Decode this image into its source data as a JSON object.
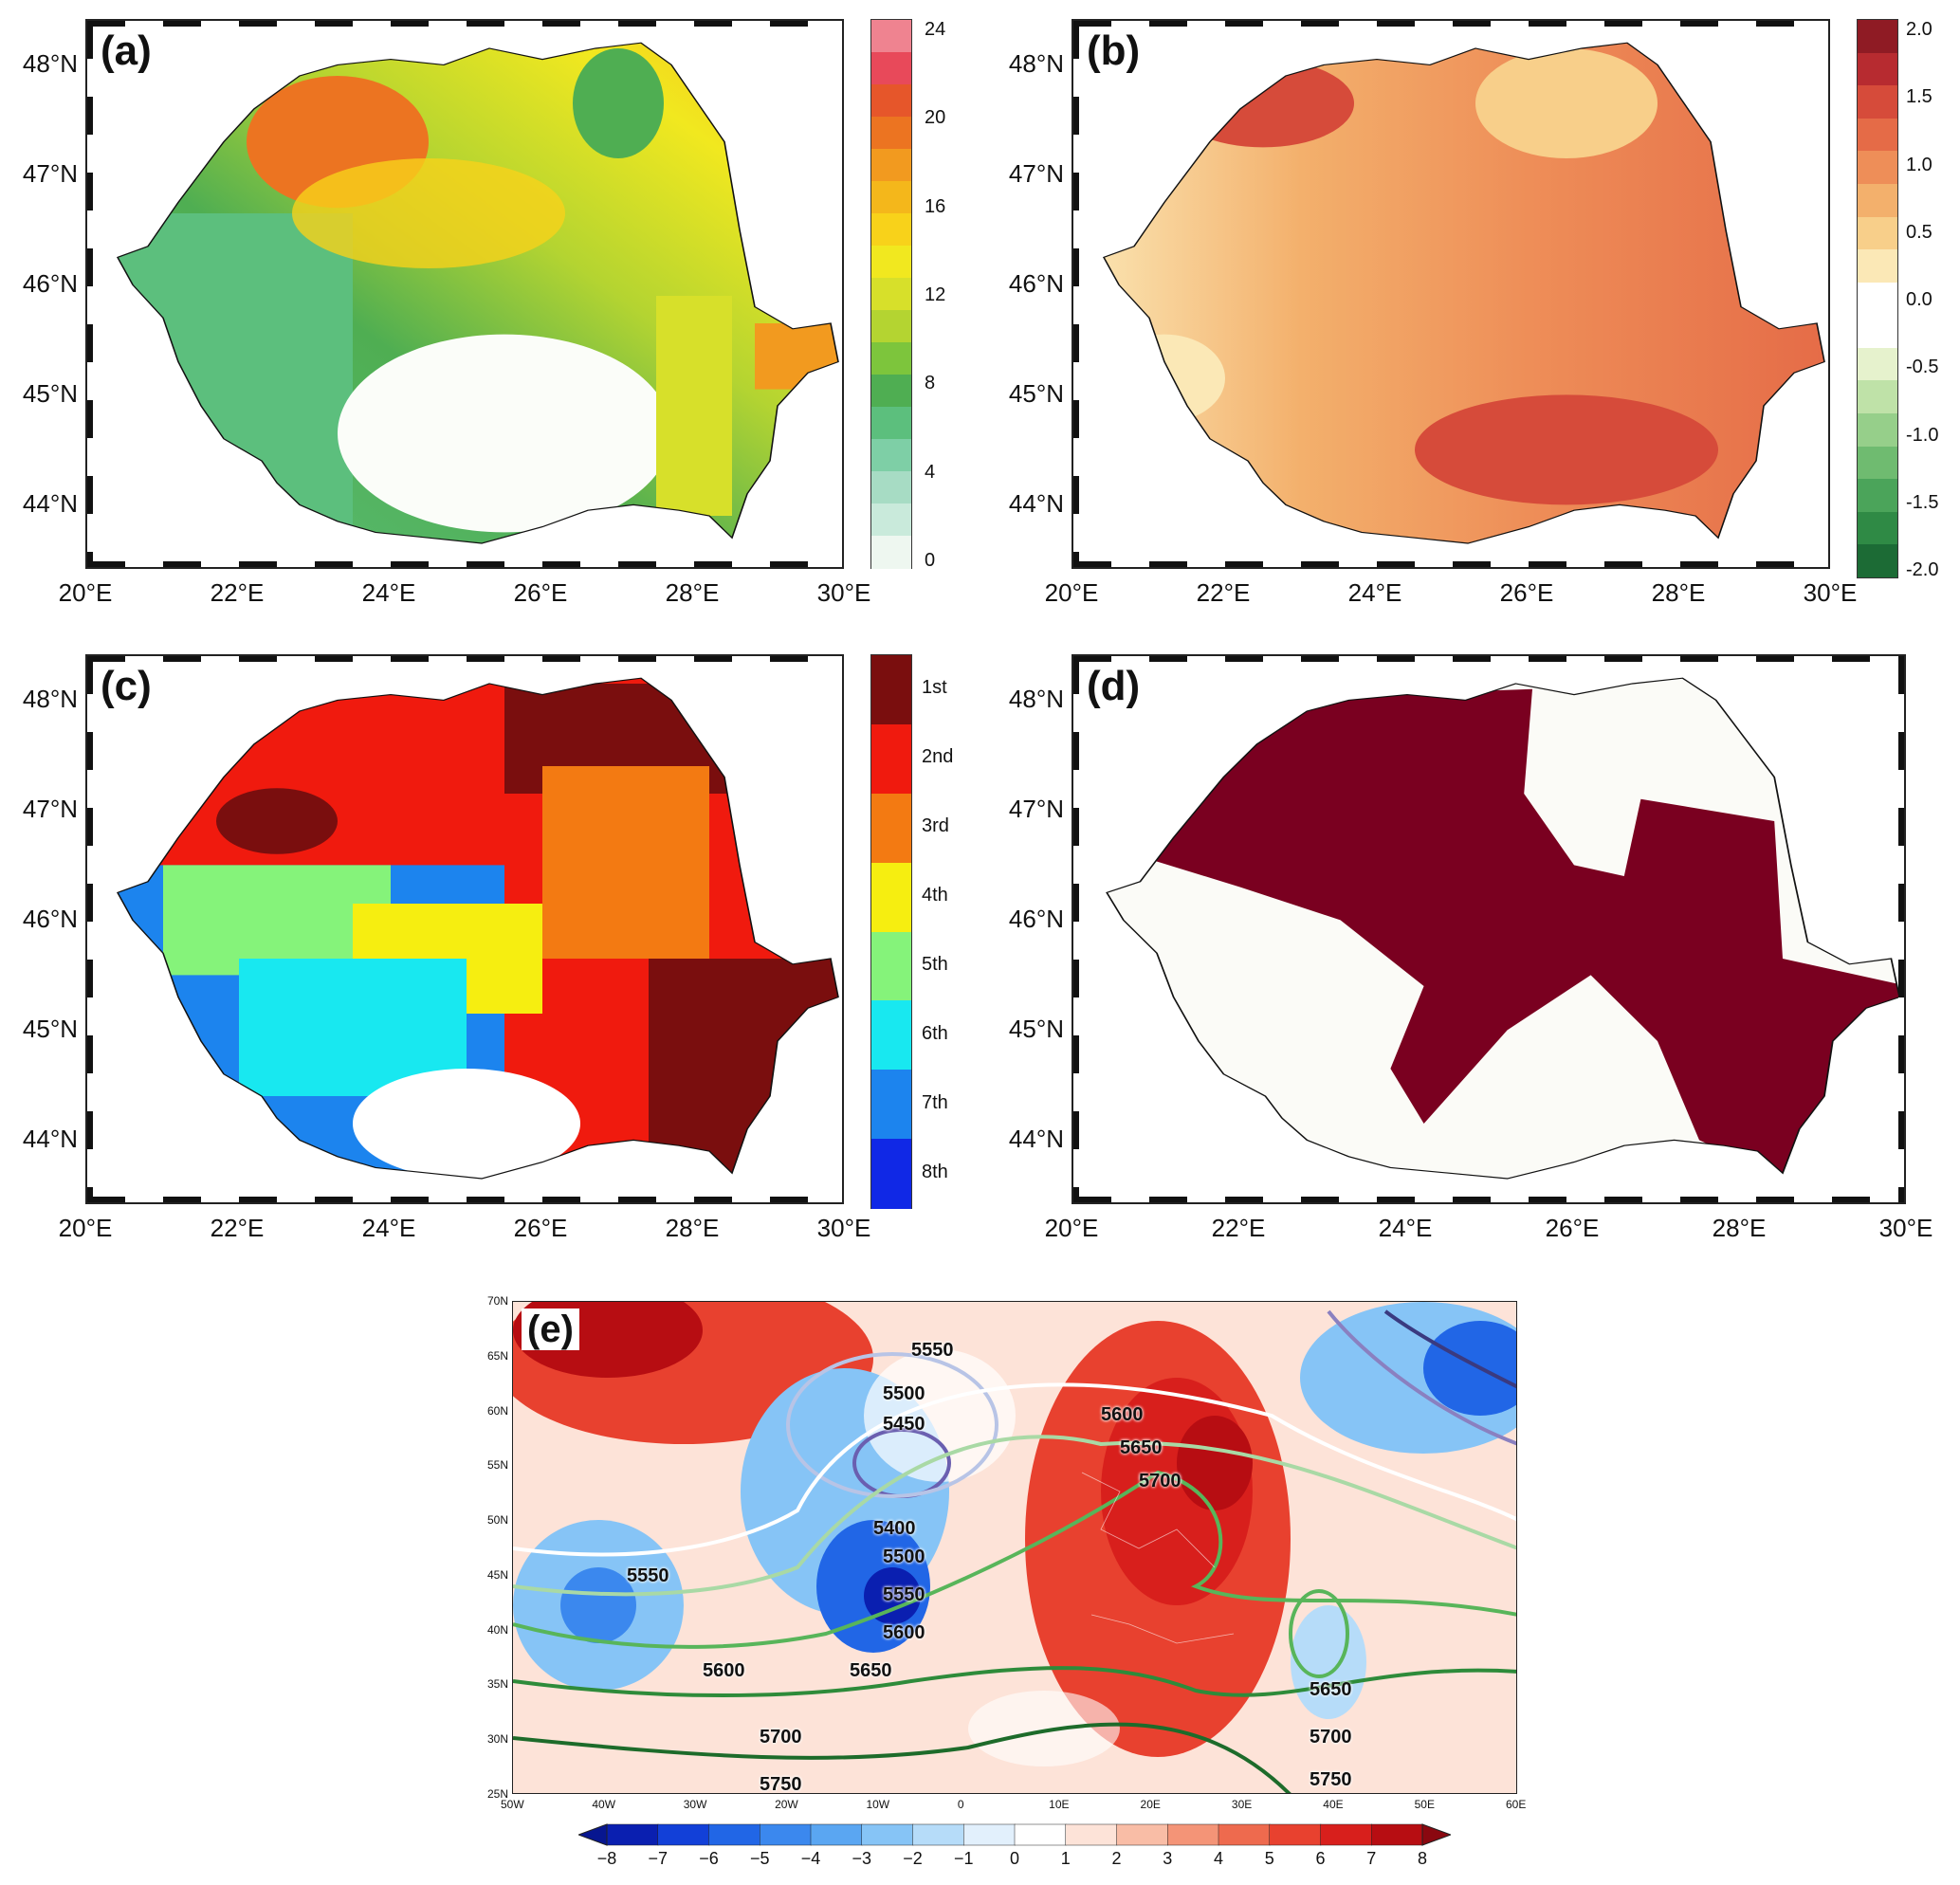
{
  "panels": {
    "a": {
      "label": "(a)",
      "colorbar_ticks": [
        "24",
        "20",
        "16",
        "12",
        "8",
        "4",
        "0"
      ],
      "colors": [
        "#eef7f0",
        "#c9eadb",
        "#a7dcc4",
        "#7ecfa6",
        "#5cbf7d",
        "#4fae52",
        "#7dc53c",
        "#b4d431",
        "#d7e02a",
        "#f1e81f",
        "#f8d21a",
        "#f4b71b",
        "#f29a1f",
        "#ec7421",
        "#e6562a",
        "#e8495a",
        "#ef8390"
      ]
    },
    "b": {
      "label": "(b)",
      "colorbar_ticks": [
        "2.0",
        "1.5",
        "1.0",
        "0.5",
        "0.0",
        "-0.5",
        "-1.0",
        "-1.5",
        "-2.0"
      ],
      "colors": [
        "#1c6b35",
        "#2f8a45",
        "#4ba45a",
        "#6fbb70",
        "#96cf8a",
        "#bfe2a8",
        "#e6f2cd",
        "#ffffff",
        "#ffffff",
        "#fbe8b6",
        "#f8cf8a",
        "#f3b06c",
        "#ee8e58",
        "#e56b47",
        "#d64b3a",
        "#b72b30",
        "#8f1b24"
      ]
    },
    "c": {
      "label": "(c)",
      "categories": [
        "1st",
        "2nd",
        "3rd",
        "4th",
        "5th",
        "6th",
        "7th",
        "8th"
      ],
      "colors": [
        "#7a0e0e",
        "#f01a0e",
        "#f37a12",
        "#f6ee10",
        "#85f37a",
        "#18e8f0",
        "#1c84ee",
        "#1028e6"
      ]
    },
    "d": {
      "label": "(d)",
      "fill_color": "#7a0020"
    },
    "e": {
      "label": "(e)",
      "contour_labels": [
        "5550",
        "5500",
        "5450",
        "5400",
        "5600",
        "5650",
        "5700",
        "5500",
        "5550",
        "5600",
        "5650",
        "5550",
        "5600",
        "5700",
        "5750",
        "5650",
        "5700",
        "5750"
      ],
      "lat_ticks": [
        "70N",
        "65N",
        "60N",
        "55N",
        "50N",
        "45N",
        "40N",
        "35N",
        "30N",
        "25N"
      ],
      "lon_ticks": [
        "50W",
        "40W",
        "30W",
        "20W",
        "10W",
        "0",
        "10E",
        "20E",
        "30E",
        "40E",
        "50E",
        "60E"
      ],
      "colorbar_ticks": [
        "−8",
        "−7",
        "−6",
        "−5",
        "−4",
        "−3",
        "−2",
        "−1",
        "0",
        "1",
        "2",
        "3",
        "4",
        "5",
        "6",
        "7",
        "8"
      ],
      "colorbar_colors": [
        "#0a1fb0",
        "#1240d8",
        "#2166e6",
        "#3b88ee",
        "#5aa6f2",
        "#86c4f6",
        "#b6dcf9",
        "#e2f0fc",
        "#ffffff",
        "#fde3d8",
        "#f9bda6",
        "#f49477",
        "#ee6a4e",
        "#e8412f",
        "#d81f1c",
        "#b70d12"
      ]
    }
  },
  "map_axes": {
    "lat_labels": [
      "48°N",
      "47°N",
      "46°N",
      "45°N",
      "44°N"
    ],
    "lon_labels": [
      "20°E",
      "22°E",
      "24°E",
      "26°E",
      "28°E",
      "30°E"
    ]
  }
}
